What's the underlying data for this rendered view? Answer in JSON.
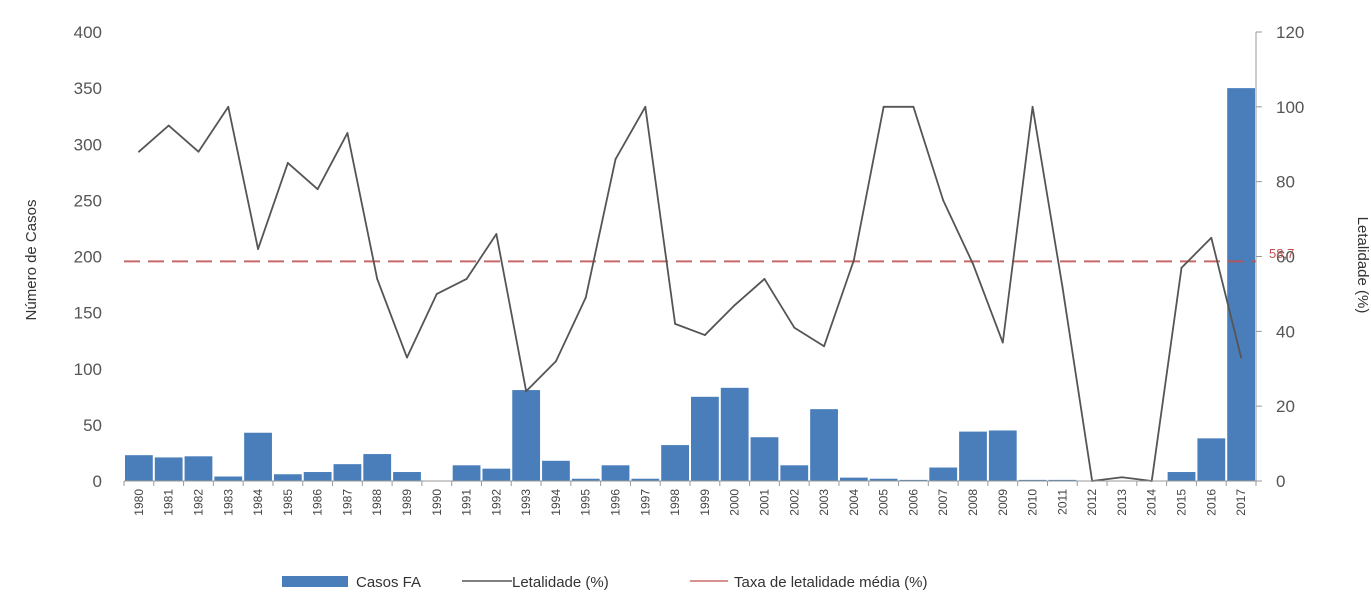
{
  "chart_data": {
    "type": "bar",
    "categories": [
      "1980",
      "1981",
      "1982",
      "1983",
      "1984",
      "1985",
      "1986",
      "1987",
      "1988",
      "1989",
      "1990",
      "1991",
      "1992",
      "1993",
      "1994",
      "1995",
      "1996",
      "1997",
      "1998",
      "1999",
      "2000",
      "2001",
      "2002",
      "2003",
      "2004",
      "2005",
      "2006",
      "2007",
      "2008",
      "2009",
      "2010",
      "2011",
      "2012",
      "2013",
      "2014",
      "2015",
      "2016",
      "2017"
    ],
    "series": [
      {
        "name": "Casos FA",
        "axis": "left",
        "type": "bar",
        "values": [
          23,
          21,
          22,
          4,
          43,
          6,
          8,
          15,
          24,
          8,
          0,
          14,
          11,
          81,
          18,
          2,
          14,
          2,
          32,
          75,
          83,
          39,
          14,
          64,
          3,
          2,
          1,
          12,
          44,
          45,
          1,
          1,
          0,
          0,
          0,
          8,
          38,
          350
        ]
      },
      {
        "name": "Letalidade (%)",
        "axis": "right",
        "type": "line",
        "values": [
          88,
          95,
          88,
          100,
          62,
          85,
          78,
          93,
          54,
          33,
          50,
          54,
          66,
          24,
          32,
          49,
          86,
          100,
          42,
          39,
          47,
          54,
          41,
          36,
          59,
          100,
          100,
          75,
          58,
          37,
          100,
          52,
          0,
          1,
          0,
          57,
          65,
          33
        ]
      },
      {
        "name": "Taxa de letalidade média (%)",
        "axis": "right",
        "type": "reference",
        "value": 58.7
      }
    ],
    "title": "",
    "ylabel": "Número de Casos",
    "y2label": "Letalidade (%)",
    "ylim": [
      0,
      400
    ],
    "y2lim": [
      0,
      120
    ],
    "yticks": [
      "0",
      "50",
      "100",
      "150",
      "200",
      "250",
      "300",
      "350",
      "400"
    ],
    "y2ticks": [
      "0",
      "20",
      "40",
      "60",
      "80",
      "100",
      "120"
    ],
    "annotation": "58,7",
    "legend_position": "bottom",
    "grid": false,
    "colors": {
      "bars": "#4a7ebb",
      "line": "#555555",
      "reference": "#c0504d",
      "annotation": "#c0504d"
    }
  }
}
